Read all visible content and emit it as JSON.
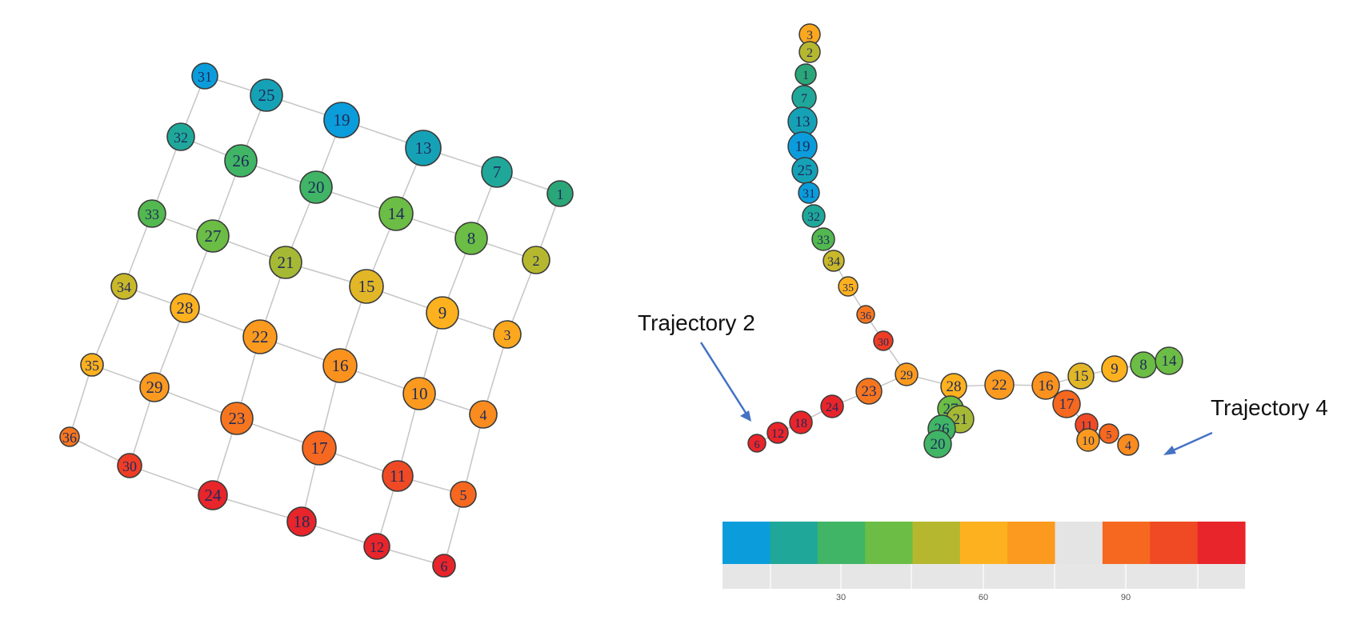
{
  "palette": [
    "#0b9ddb",
    "#1fa89a",
    "#40b565",
    "#6bbd45",
    "#b5b82f",
    "#fdb11e",
    "#fb9a1e",
    "#e4e4e4",
    "#f6681f",
    "#f04a24",
    "#e8252a"
  ],
  "grid_graph": {
    "nodes": [
      {
        "id": "1",
        "color": "#2aa678"
      },
      {
        "id": "2",
        "color": "#b5b82f"
      },
      {
        "id": "3",
        "color": "#fba81e"
      },
      {
        "id": "4",
        "color": "#f98b1f"
      },
      {
        "id": "5",
        "color": "#f6681f"
      },
      {
        "id": "6",
        "color": "#e8252a"
      },
      {
        "id": "7",
        "color": "#1fa89a"
      },
      {
        "id": "8",
        "color": "#6bbd45"
      },
      {
        "id": "9",
        "color": "#fdb11e"
      },
      {
        "id": "10",
        "color": "#fb9a1e"
      },
      {
        "id": "11",
        "color": "#f04a24"
      },
      {
        "id": "12",
        "color": "#e8252a"
      },
      {
        "id": "13",
        "color": "#16a2b6"
      },
      {
        "id": "14",
        "color": "#6bbd45"
      },
      {
        "id": "15",
        "color": "#e2b727"
      },
      {
        "id": "16",
        "color": "#fb921e"
      },
      {
        "id": "17",
        "color": "#f6681f"
      },
      {
        "id": "18",
        "color": "#e8252a"
      },
      {
        "id": "19",
        "color": "#0b9ddb"
      },
      {
        "id": "20",
        "color": "#40b565"
      },
      {
        "id": "21",
        "color": "#a6b935"
      },
      {
        "id": "22",
        "color": "#fb9a1e"
      },
      {
        "id": "23",
        "color": "#f6761f"
      },
      {
        "id": "24",
        "color": "#e8252a"
      },
      {
        "id": "25",
        "color": "#16a2b6"
      },
      {
        "id": "26",
        "color": "#40b565"
      },
      {
        "id": "27",
        "color": "#6bbd45"
      },
      {
        "id": "28",
        "color": "#fdb11e"
      },
      {
        "id": "29",
        "color": "#fb9a1e"
      },
      {
        "id": "30",
        "color": "#ef3d25"
      },
      {
        "id": "31",
        "color": "#0b9ddb"
      },
      {
        "id": "32",
        "color": "#1fa89a"
      },
      {
        "id": "33",
        "color": "#52b84f"
      },
      {
        "id": "34",
        "color": "#c8b82a"
      },
      {
        "id": "35",
        "color": "#fdb11e"
      },
      {
        "id": "36",
        "color": "#f6761f"
      }
    ]
  },
  "trajectory_graph": {
    "nodes": [
      {
        "id": "3",
        "color": "#fba81e"
      },
      {
        "id": "2",
        "color": "#b5b82f"
      },
      {
        "id": "1",
        "color": "#2aa678"
      },
      {
        "id": "7",
        "color": "#1fa89a"
      },
      {
        "id": "13",
        "color": "#16a2b6"
      },
      {
        "id": "19",
        "color": "#0b9ddb"
      },
      {
        "id": "25",
        "color": "#16a2b6"
      },
      {
        "id": "31",
        "color": "#0b9ddb"
      },
      {
        "id": "32",
        "color": "#1fa89a"
      },
      {
        "id": "33",
        "color": "#52b84f"
      },
      {
        "id": "34",
        "color": "#c8b82a"
      },
      {
        "id": "35",
        "color": "#fdb11e"
      },
      {
        "id": "36",
        "color": "#f6761f"
      },
      {
        "id": "30",
        "color": "#ef3d25"
      },
      {
        "id": "29",
        "color": "#fb9a1e"
      },
      {
        "id": "23",
        "color": "#f6761f"
      },
      {
        "id": "24",
        "color": "#e8252a"
      },
      {
        "id": "18",
        "color": "#e8252a"
      },
      {
        "id": "12",
        "color": "#e8252a"
      },
      {
        "id": "6",
        "color": "#e8252a"
      },
      {
        "id": "28",
        "color": "#fdb11e"
      },
      {
        "id": "22",
        "color": "#fb9a1e"
      },
      {
        "id": "16",
        "color": "#fb921e"
      },
      {
        "id": "15",
        "color": "#e2b727"
      },
      {
        "id": "9",
        "color": "#fdb11e"
      },
      {
        "id": "8",
        "color": "#6bbd45"
      },
      {
        "id": "14",
        "color": "#6bbd45"
      },
      {
        "id": "17",
        "color": "#f6681f"
      },
      {
        "id": "11",
        "color": "#f04a24"
      },
      {
        "id": "5",
        "color": "#f6681f"
      },
      {
        "id": "10",
        "color": "#fb9a1e"
      },
      {
        "id": "4",
        "color": "#f98b1f"
      },
      {
        "id": "27",
        "color": "#6bbd45"
      },
      {
        "id": "21",
        "color": "#a6b935"
      },
      {
        "id": "26",
        "color": "#40b565"
      },
      {
        "id": "20",
        "color": "#40b565"
      }
    ]
  },
  "annotations": {
    "trajectory_2": "Trajectory 2",
    "trajectory_4": "Trajectory 4",
    "arrow_color": "#4472c4"
  },
  "color_scale": {
    "ticks": [
      "30",
      "60",
      "90"
    ]
  }
}
